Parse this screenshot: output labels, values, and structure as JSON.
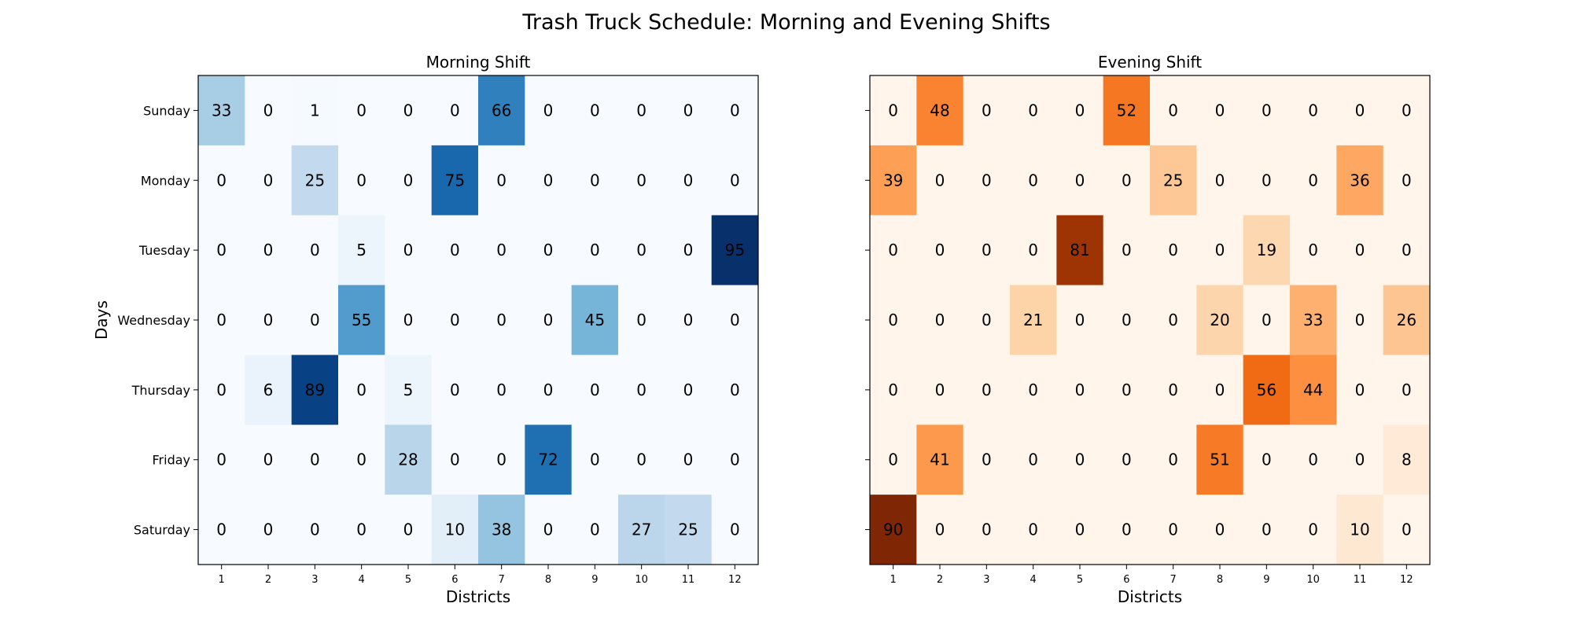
{
  "figure_title": "Trash Truck Schedule: Morning and Evening Shifts",
  "chart_data": [
    {
      "type": "heatmap",
      "title": "Morning Shift",
      "xlabel": "Districts",
      "ylabel": "Days",
      "colormap": "Blues",
      "x": [
        "1",
        "2",
        "3",
        "4",
        "5",
        "6",
        "7",
        "8",
        "9",
        "10",
        "11",
        "12"
      ],
      "y": [
        "Sunday",
        "Monday",
        "Tuesday",
        "Wednesday",
        "Thursday",
        "Friday",
        "Saturday"
      ],
      "values": [
        [
          33,
          0,
          1,
          0,
          0,
          0,
          66,
          0,
          0,
          0,
          0,
          0
        ],
        [
          0,
          0,
          25,
          0,
          0,
          75,
          0,
          0,
          0,
          0,
          0,
          0
        ],
        [
          0,
          0,
          0,
          5,
          0,
          0,
          0,
          0,
          0,
          0,
          0,
          95
        ],
        [
          0,
          0,
          0,
          55,
          0,
          0,
          0,
          0,
          45,
          0,
          0,
          0
        ],
        [
          0,
          6,
          89,
          0,
          5,
          0,
          0,
          0,
          0,
          0,
          0,
          0
        ],
        [
          0,
          0,
          0,
          0,
          28,
          0,
          0,
          72,
          0,
          0,
          0,
          0
        ],
        [
          0,
          0,
          0,
          0,
          0,
          10,
          38,
          0,
          0,
          27,
          25,
          0
        ]
      ],
      "vrange": [
        0,
        95
      ]
    },
    {
      "type": "heatmap",
      "title": "Evening Shift",
      "xlabel": "Districts",
      "ylabel": "",
      "colormap": "Oranges",
      "x": [
        "1",
        "2",
        "3",
        "4",
        "5",
        "6",
        "7",
        "8",
        "9",
        "10",
        "11",
        "12"
      ],
      "y": [
        "Sunday",
        "Monday",
        "Tuesday",
        "Wednesday",
        "Thursday",
        "Friday",
        "Saturday"
      ],
      "values": [
        [
          0,
          48,
          0,
          0,
          0,
          52,
          0,
          0,
          0,
          0,
          0,
          0
        ],
        [
          39,
          0,
          0,
          0,
          0,
          0,
          25,
          0,
          0,
          0,
          36,
          0
        ],
        [
          0,
          0,
          0,
          0,
          81,
          0,
          0,
          0,
          19,
          0,
          0,
          0
        ],
        [
          0,
          0,
          0,
          21,
          0,
          0,
          0,
          20,
          0,
          33,
          0,
          26
        ],
        [
          0,
          0,
          0,
          0,
          0,
          0,
          0,
          0,
          56,
          44,
          0,
          0
        ],
        [
          0,
          41,
          0,
          0,
          0,
          0,
          0,
          51,
          0,
          0,
          0,
          8
        ],
        [
          90,
          0,
          0,
          0,
          0,
          0,
          0,
          0,
          0,
          0,
          10,
          0
        ]
      ],
      "vrange": [
        0,
        90
      ]
    }
  ]
}
